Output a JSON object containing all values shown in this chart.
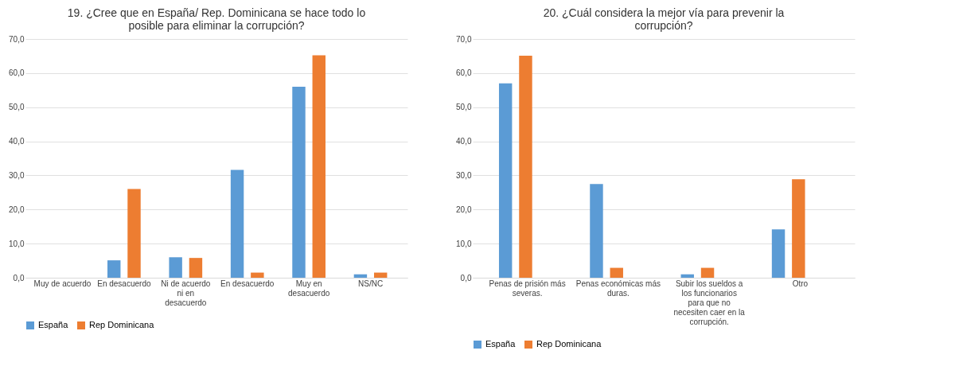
{
  "chart_data": [
    {
      "type": "bar",
      "title": "19. ¿Cree que en España/ Rep. Dominicana se hace todo lo posible para eliminar la corrupción?",
      "categories": [
        "Muy de acuerdo",
        "En desacuerdo",
        "Ni de acuerdo ni en desacuerdo",
        "En desacuerdo",
        "Muy en desacuerdo",
        "NS/NC"
      ],
      "series": [
        {
          "name": "España",
          "color": "#5b9bd5",
          "values": [
            0,
            5.1,
            6.0,
            31.6,
            56.0,
            1.0
          ]
        },
        {
          "name": "Rep Dominicana",
          "color": "#ed7d31",
          "values": [
            0,
            26.0,
            5.8,
            1.5,
            65.2,
            1.5
          ]
        }
      ],
      "ylim": [
        0,
        70
      ],
      "yticks": [
        {
          "value": 0,
          "label": "0,0"
        },
        {
          "value": 10,
          "label": "10,0"
        },
        {
          "value": 20,
          "label": "20,0"
        },
        {
          "value": 30,
          "label": "30,0"
        },
        {
          "value": 40,
          "label": "40,0"
        },
        {
          "value": 50,
          "label": "50,0"
        },
        {
          "value": 60,
          "label": "60,0"
        },
        {
          "value": 70,
          "label": "70,0"
        }
      ],
      "grid": "y",
      "legend": "bottom"
    },
    {
      "type": "bar",
      "title": "20. ¿Cuál considera la mejor vía para prevenir la corrupción?",
      "categories": [
        "Penas de prisión más severas.",
        "Penas económicas más duras.",
        "Subir los sueldos a los funcionarios para que no necesiten caer en la corrupción.",
        "Otro"
      ],
      "series": [
        {
          "name": "España",
          "color": "#5b9bd5",
          "values": [
            57.0,
            27.5,
            1.0,
            14.2
          ]
        },
        {
          "name": "Rep Dominicana",
          "color": "#ed7d31",
          "values": [
            65.1,
            2.9,
            2.9,
            28.9
          ]
        }
      ],
      "ylim": [
        0,
        70
      ],
      "yticks": [
        {
          "value": 0,
          "label": "0,0"
        },
        {
          "value": 10,
          "label": "10,0"
        },
        {
          "value": 20,
          "label": "20,0"
        },
        {
          "value": 30,
          "label": "30,0"
        },
        {
          "value": 40,
          "label": "40,0"
        },
        {
          "value": 50,
          "label": "50,0"
        },
        {
          "value": 60,
          "label": "60,0"
        },
        {
          "value": 70,
          "label": "70,0"
        }
      ],
      "grid": "y",
      "legend": "bottom"
    }
  ]
}
